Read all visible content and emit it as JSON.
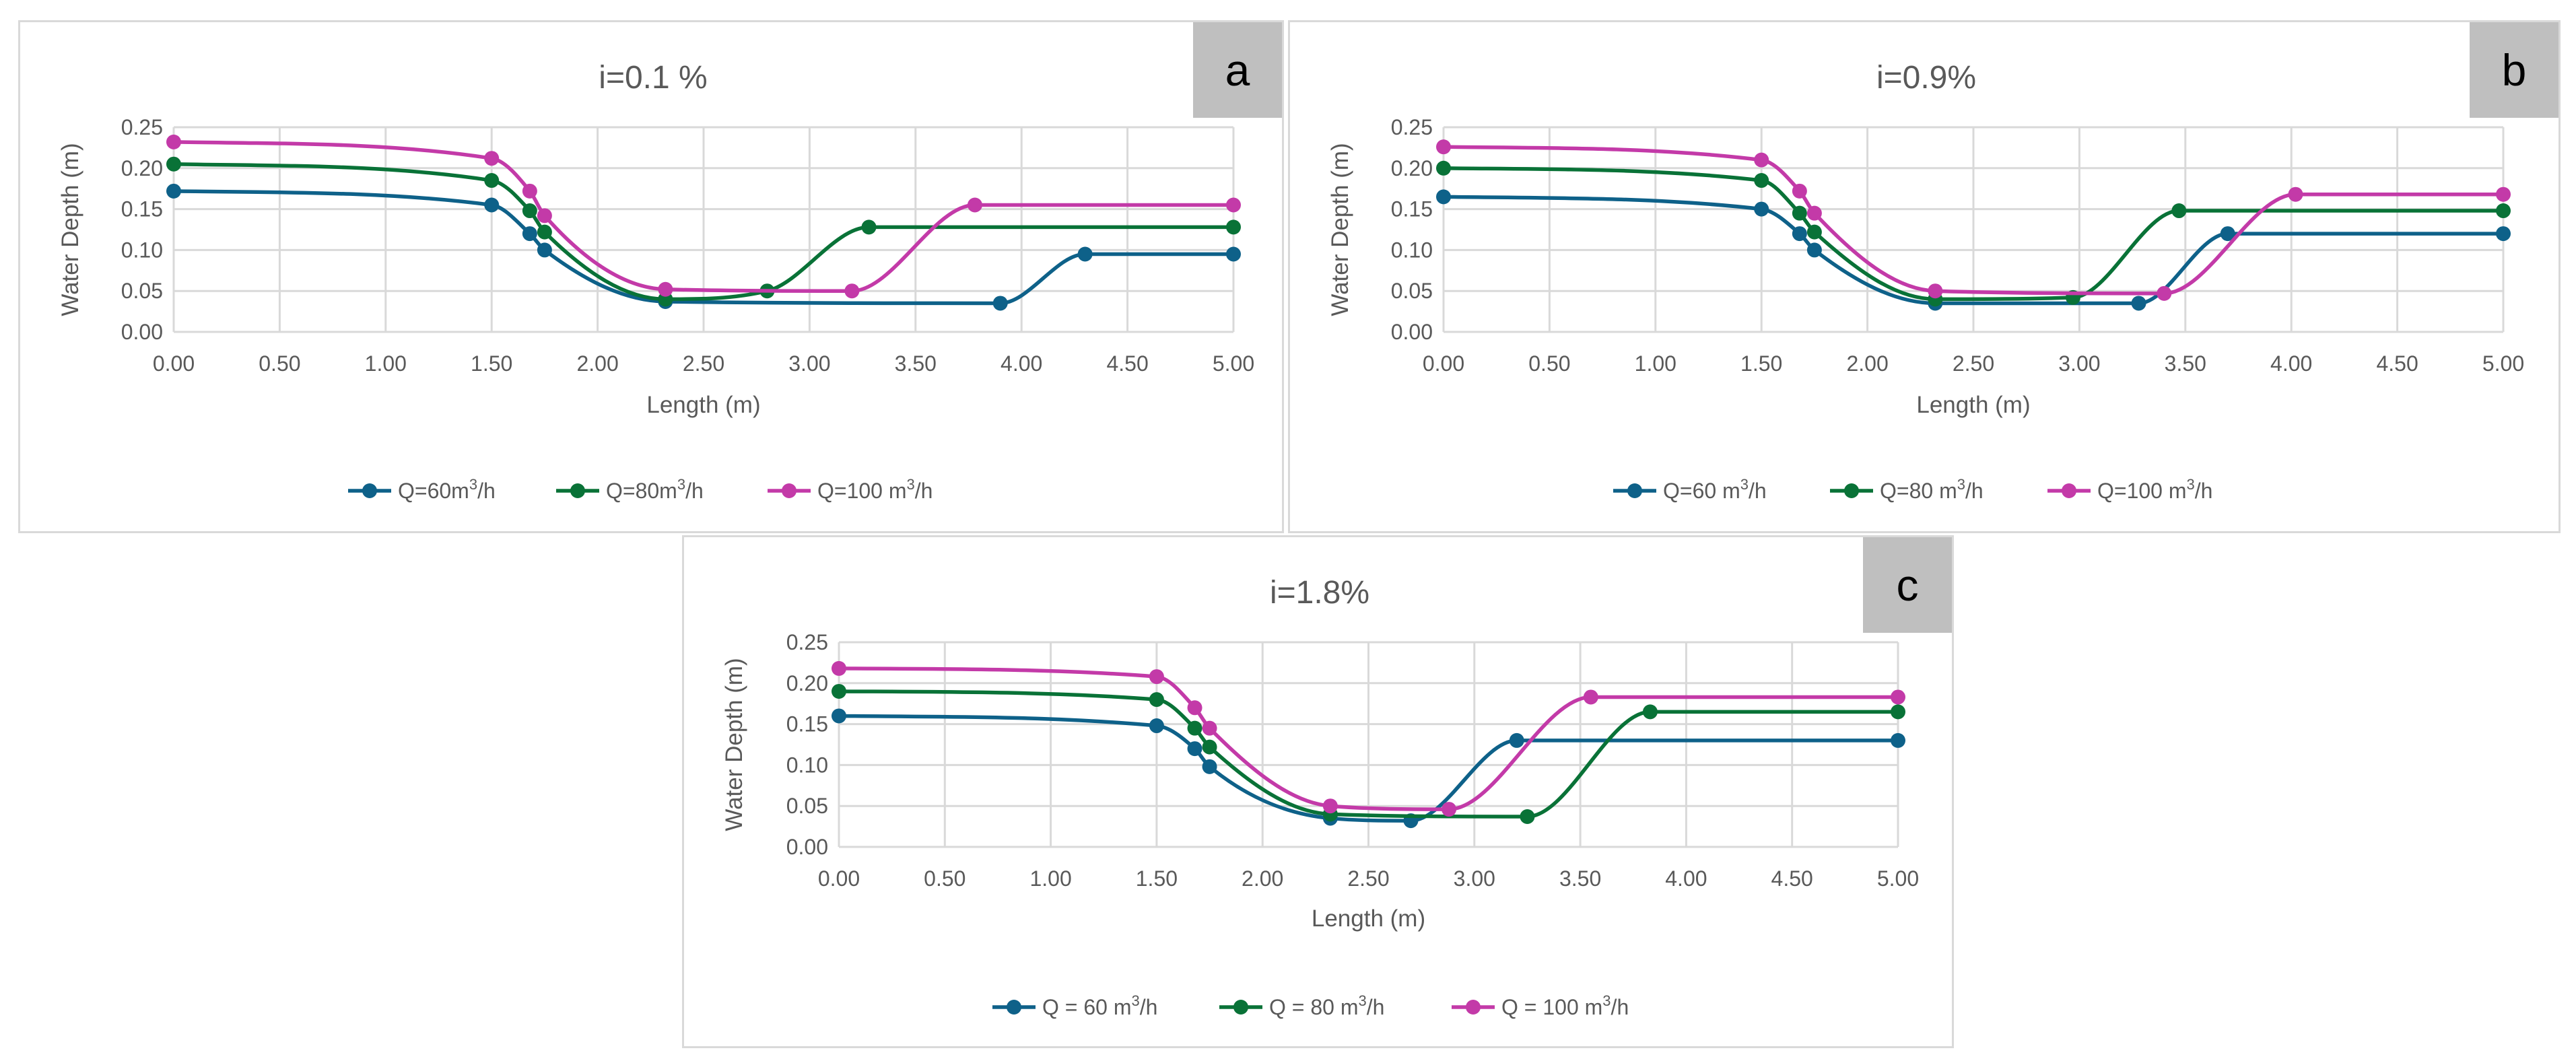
{
  "chart_data": [
    {
      "type": "line",
      "id": "a",
      "title": "i=0.1 %",
      "badge": "a",
      "xlabel": "Length (m)",
      "ylabel": "Water Depth (m)",
      "xlim": [
        0,
        5
      ],
      "ylim": [
        0,
        0.25
      ],
      "xticks": [
        "0.00",
        "0.50",
        "1.00",
        "1.50",
        "2.00",
        "2.50",
        "3.00",
        "3.50",
        "4.00",
        "4.50",
        "5.00"
      ],
      "yticks": [
        "0.00",
        "0.05",
        "0.10",
        "0.15",
        "0.20",
        "0.25"
      ],
      "series": [
        {
          "name": "Q=60m",
          "unit": "3",
          "suffix": "/h",
          "color": "#0e6189",
          "x": [
            0,
            1.5,
            1.68,
            1.75,
            2.32,
            3.9,
            4.3,
            5.0
          ],
          "y": [
            0.172,
            0.155,
            0.12,
            0.1,
            0.037,
            0.035,
            0.095,
            0.095
          ]
        },
        {
          "name": "Q=80m",
          "unit": "3",
          "suffix": "/h",
          "color": "#097237",
          "x": [
            0,
            1.5,
            1.68,
            1.75,
            2.32,
            2.8,
            3.28,
            5.0
          ],
          "y": [
            0.205,
            0.185,
            0.148,
            0.122,
            0.04,
            0.05,
            0.128,
            0.128
          ]
        },
        {
          "name": "Q=100 m",
          "unit": "3",
          "suffix": "/h",
          "color": "#c33aa8",
          "x": [
            0,
            1.5,
            1.68,
            1.75,
            2.32,
            3.2,
            3.78,
            5.0
          ],
          "y": [
            0.232,
            0.212,
            0.172,
            0.142,
            0.052,
            0.05,
            0.155,
            0.155
          ]
        }
      ]
    },
    {
      "type": "line",
      "id": "b",
      "title": "i=0.9%",
      "badge": "b",
      "xlabel": "Length (m)",
      "ylabel": "Water Depth (m)",
      "xlim": [
        0,
        5
      ],
      "ylim": [
        0,
        0.25
      ],
      "xticks": [
        "0.00",
        "0.50",
        "1.00",
        "1.50",
        "2.00",
        "2.50",
        "3.00",
        "3.50",
        "4.00",
        "4.50",
        "5.00"
      ],
      "yticks": [
        "0.00",
        "0.05",
        "0.10",
        "0.15",
        "0.20",
        "0.25"
      ],
      "series": [
        {
          "name": "Q=60 m",
          "unit": "3",
          "suffix": "/h",
          "color": "#0e6189",
          "x": [
            0,
            1.5,
            1.68,
            1.75,
            2.32,
            3.28,
            3.7,
            5.0
          ],
          "y": [
            0.165,
            0.15,
            0.12,
            0.1,
            0.035,
            0.035,
            0.12,
            0.12
          ]
        },
        {
          "name": "Q=80 m",
          "unit": "3",
          "suffix": "/h",
          "color": "#097237",
          "x": [
            0,
            1.5,
            1.68,
            1.75,
            2.32,
            2.97,
            3.47,
            5.0
          ],
          "y": [
            0.2,
            0.185,
            0.145,
            0.122,
            0.04,
            0.042,
            0.148,
            0.148
          ]
        },
        {
          "name": "Q=100 m",
          "unit": "3",
          "suffix": "/h",
          "color": "#c33aa8",
          "x": [
            0,
            1.5,
            1.68,
            1.75,
            2.32,
            3.4,
            4.02,
            5.0
          ],
          "y": [
            0.226,
            0.21,
            0.172,
            0.145,
            0.05,
            0.047,
            0.168,
            0.168
          ]
        }
      ]
    },
    {
      "type": "line",
      "id": "c",
      "title": "i=1.8%",
      "badge": "c",
      "xlabel": "Length (m)",
      "ylabel": "Water Depth (m)",
      "xlim": [
        0,
        5
      ],
      "ylim": [
        0,
        0.25
      ],
      "xticks": [
        "0.00",
        "0.50",
        "1.00",
        "1.50",
        "2.00",
        "2.50",
        "3.00",
        "3.50",
        "4.00",
        "4.50",
        "5.00"
      ],
      "yticks": [
        "0.00",
        "0.05",
        "0.10",
        "0.15",
        "0.20",
        "0.25"
      ],
      "series": [
        {
          "name": "Q = 60 m",
          "unit": "3",
          "suffix": "/h",
          "color": "#0e6189",
          "x": [
            0,
            1.5,
            1.68,
            1.75,
            2.32,
            2.7,
            3.2,
            5.0
          ],
          "y": [
            0.16,
            0.148,
            0.12,
            0.098,
            0.035,
            0.032,
            0.13,
            0.13
          ]
        },
        {
          "name": "Q = 80 m",
          "unit": "3",
          "suffix": "/h",
          "color": "#097237",
          "x": [
            0,
            1.5,
            1.68,
            1.75,
            2.32,
            3.25,
            3.83,
            5.0
          ],
          "y": [
            0.19,
            0.18,
            0.145,
            0.122,
            0.04,
            0.037,
            0.165,
            0.165
          ]
        },
        {
          "name": "Q = 100 m",
          "unit": "3",
          "suffix": "/h",
          "color": "#c33aa8",
          "x": [
            0,
            1.5,
            1.68,
            1.75,
            2.32,
            2.88,
            3.55,
            5.0
          ],
          "y": [
            0.218,
            0.208,
            0.17,
            0.145,
            0.05,
            0.046,
            0.183,
            0.183
          ]
        }
      ]
    }
  ]
}
